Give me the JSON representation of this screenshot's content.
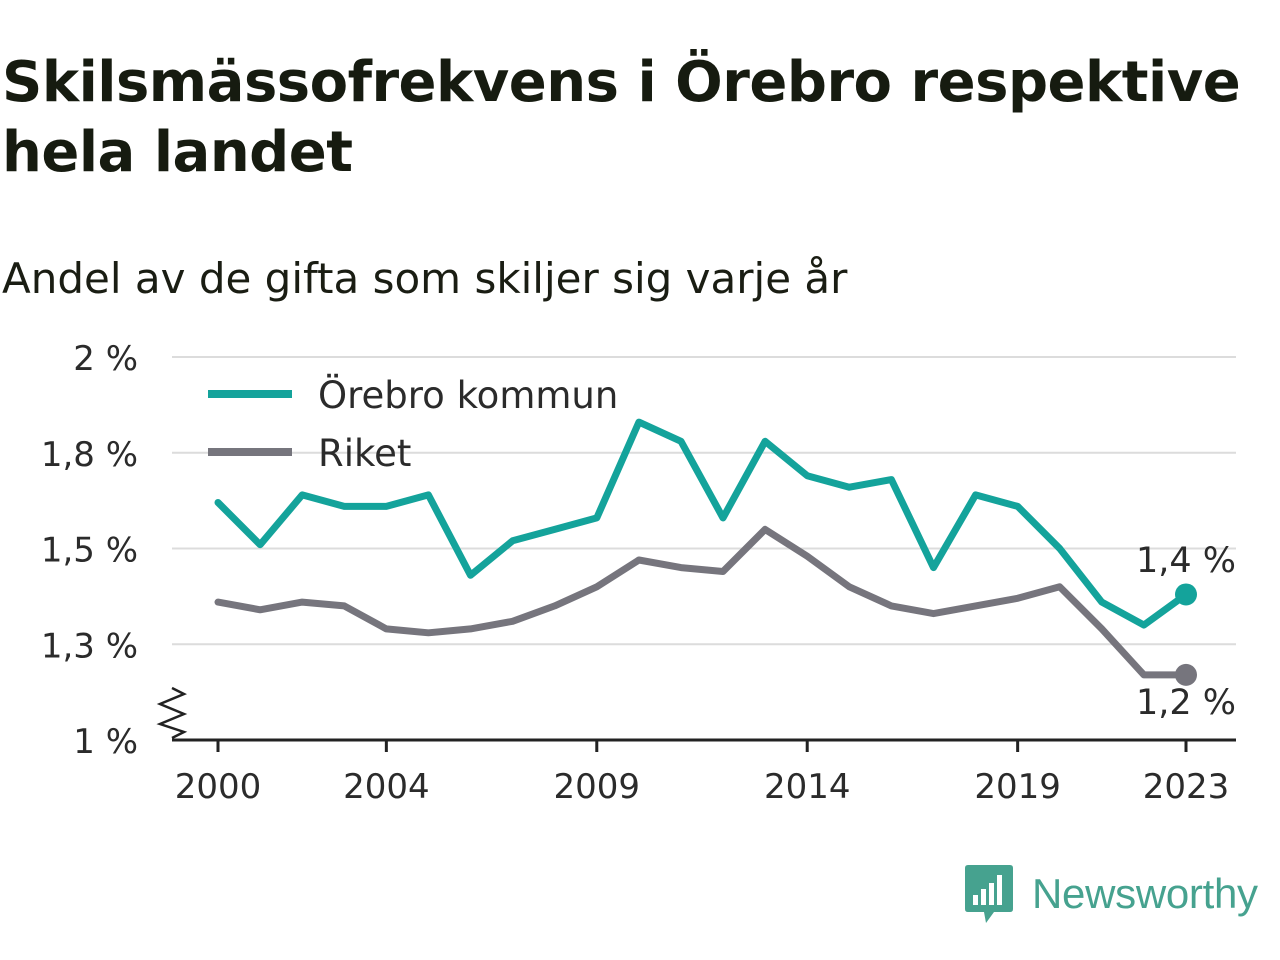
{
  "title": "Skilsmässofrekvens i Örebro respektive hela landet",
  "subtitle": "Andel av de gifta som skiljer sig varje år",
  "brand": "Newsworthy",
  "chart_data": {
    "type": "line",
    "x": [
      2000,
      2001,
      2002,
      2003,
      2004,
      2005,
      2006,
      2007,
      2008,
      2009,
      2010,
      2011,
      2012,
      2013,
      2014,
      2015,
      2016,
      2017,
      2018,
      2019,
      2020,
      2021,
      2022,
      2023
    ],
    "xticks": [
      "2000",
      "2004",
      "2009",
      "2014",
      "2019",
      "2023"
    ],
    "yticks": [
      "1 %",
      "1,3 %",
      "1,5 %",
      "1,8 %",
      "2 %"
    ],
    "ylim": [
      1.0,
      2.0
    ],
    "series": [
      {
        "name": "Örebro kommun",
        "color": "#14a39b",
        "values": [
          1.62,
          1.51,
          1.64,
          1.61,
          1.61,
          1.64,
          1.43,
          1.52,
          1.55,
          1.58,
          1.83,
          1.78,
          1.58,
          1.78,
          1.69,
          1.66,
          1.68,
          1.45,
          1.64,
          1.61,
          1.5,
          1.36,
          1.3,
          1.38
        ]
      },
      {
        "name": "Riket",
        "color": "#76757d",
        "values": [
          1.36,
          1.34,
          1.36,
          1.35,
          1.29,
          1.28,
          1.29,
          1.31,
          1.35,
          1.4,
          1.47,
          1.45,
          1.44,
          1.55,
          1.48,
          1.4,
          1.35,
          1.33,
          1.35,
          1.37,
          1.4,
          1.29,
          1.17,
          1.17
        ]
      }
    ],
    "end_labels": [
      "1,4 %",
      "1,2 %"
    ],
    "grid": true,
    "legend": "top-left"
  }
}
